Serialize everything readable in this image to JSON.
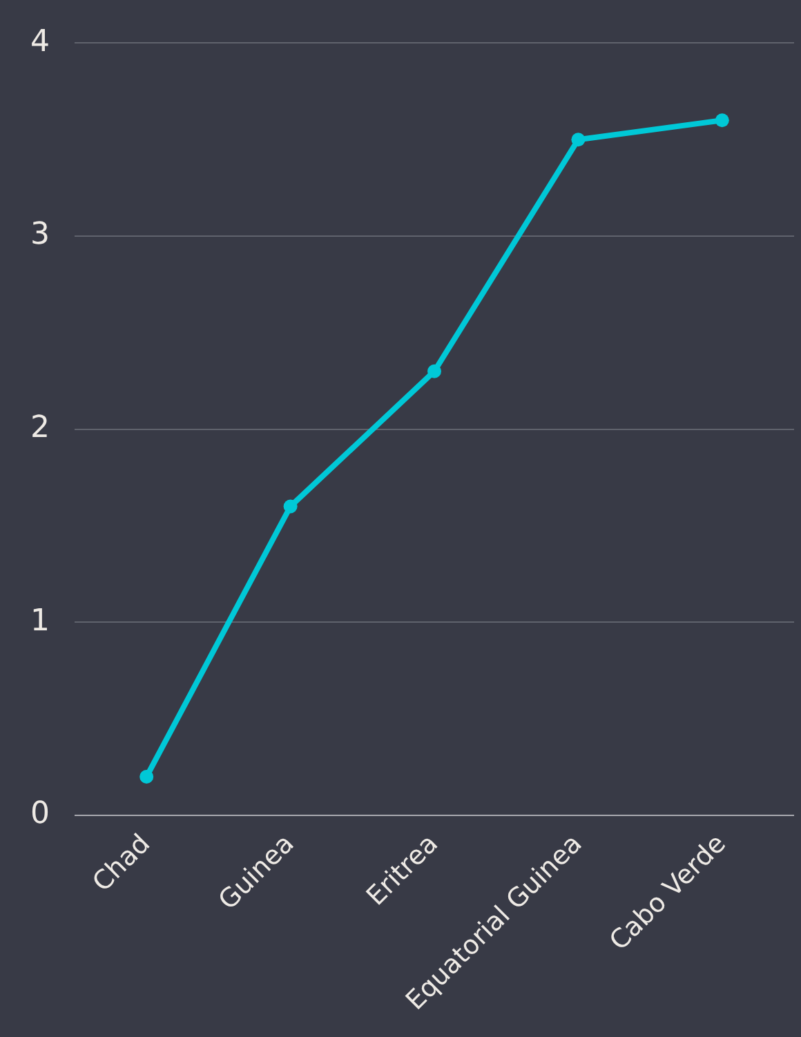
{
  "chart_data": {
    "type": "line",
    "categories": [
      "Chad",
      "Guinea",
      "Eritrea",
      "Equatorial Guinea",
      "Cabo Verde"
    ],
    "series": [
      {
        "color": "#00c8d7",
        "values": [
          0.2,
          1.6,
          2.3,
          3.5,
          3.6
        ]
      }
    ],
    "ylim": [
      0,
      4
    ],
    "yticks": [
      0,
      1,
      2,
      3,
      4
    ],
    "grid": "y",
    "legend": false,
    "marker": "circle",
    "line_style": "solid"
  }
}
